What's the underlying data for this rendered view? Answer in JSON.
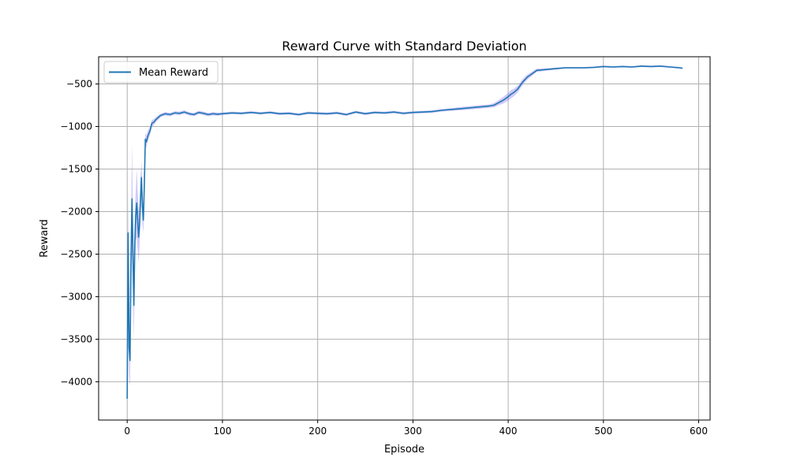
{
  "chart_data": {
    "type": "line",
    "title": "Reward Curve with Standard Deviation",
    "xlabel": "Episode",
    "ylabel": "Reward",
    "xlim": [
      -30,
      612
    ],
    "ylim": [
      -4450,
      -180
    ],
    "xticks": [
      0,
      100,
      200,
      300,
      400,
      500,
      600
    ],
    "yticks": [
      -4000,
      -3500,
      -3000,
      -2500,
      -2000,
      -1500,
      -1000,
      -500
    ],
    "xtick_labels": [
      "0",
      "100",
      "200",
      "300",
      "400",
      "500",
      "600"
    ],
    "ytick_labels": [
      "−4000",
      "−3500",
      "−3000",
      "−2500",
      "−2000",
      "−1500",
      "−1000",
      "−500"
    ],
    "grid": true,
    "legend": {
      "position": "top-left",
      "entries": [
        "Mean Reward"
      ]
    },
    "colors": {
      "line": "#1f77b4",
      "band": "#7b68ee"
    },
    "series": [
      {
        "name": "Mean Reward",
        "x": [
          0,
          1,
          2,
          3,
          4,
          5,
          6,
          7,
          8,
          9,
          10,
          11,
          12,
          13,
          14,
          15,
          16,
          17,
          18,
          19,
          20,
          22,
          24,
          26,
          28,
          30,
          35,
          40,
          45,
          50,
          55,
          60,
          65,
          70,
          75,
          80,
          85,
          90,
          95,
          100,
          110,
          120,
          130,
          140,
          150,
          160,
          170,
          180,
          190,
          200,
          210,
          220,
          230,
          240,
          250,
          260,
          270,
          280,
          290,
          300,
          310,
          320,
          330,
          340,
          350,
          360,
          370,
          380,
          385,
          390,
          395,
          400,
          403,
          406,
          410,
          415,
          420,
          425,
          430,
          440,
          450,
          460,
          470,
          480,
          490,
          500,
          510,
          520,
          530,
          540,
          550,
          560,
          570,
          575,
          580,
          583
        ],
        "y": [
          -4200,
          -2250,
          -3600,
          -3750,
          -2600,
          -1850,
          -2500,
          -3100,
          -2350,
          -2050,
          -1900,
          -2100,
          -2300,
          -2150,
          -1850,
          -1600,
          -1950,
          -2100,
          -1700,
          -1150,
          -1180,
          -1100,
          -1050,
          -960,
          -950,
          -920,
          -870,
          -850,
          -860,
          -840,
          -845,
          -830,
          -850,
          -860,
          -835,
          -845,
          -860,
          -850,
          -855,
          -850,
          -840,
          -845,
          -835,
          -845,
          -835,
          -850,
          -845,
          -860,
          -840,
          -845,
          -850,
          -840,
          -860,
          -830,
          -850,
          -835,
          -840,
          -830,
          -845,
          -835,
          -830,
          -825,
          -810,
          -800,
          -790,
          -780,
          -770,
          -760,
          -750,
          -720,
          -690,
          -650,
          -620,
          -600,
          -560,
          -480,
          -420,
          -380,
          -340,
          -330,
          -320,
          -310,
          -310,
          -310,
          -305,
          -295,
          -300,
          -295,
          -300,
          -290,
          -295,
          -290,
          -300,
          -305,
          -310,
          -315
        ],
        "std": [
          60,
          600,
          350,
          300,
          450,
          650,
          500,
          400,
          350,
          300,
          400,
          350,
          300,
          250,
          250,
          200,
          200,
          150,
          120,
          80,
          70,
          60,
          50,
          40,
          35,
          30,
          20,
          20,
          20,
          20,
          20,
          20,
          20,
          20,
          20,
          20,
          20,
          20,
          20,
          15,
          15,
          15,
          15,
          15,
          15,
          15,
          15,
          15,
          15,
          15,
          15,
          15,
          15,
          15,
          15,
          15,
          15,
          15,
          15,
          15,
          15,
          15,
          15,
          15,
          20,
          20,
          20,
          20,
          25,
          30,
          40,
          45,
          50,
          45,
          40,
          35,
          30,
          25,
          20,
          15,
          12,
          10,
          10,
          10,
          10,
          10,
          10,
          10,
          10,
          10,
          10,
          10,
          10,
          10,
          10,
          10
        ]
      }
    ]
  }
}
